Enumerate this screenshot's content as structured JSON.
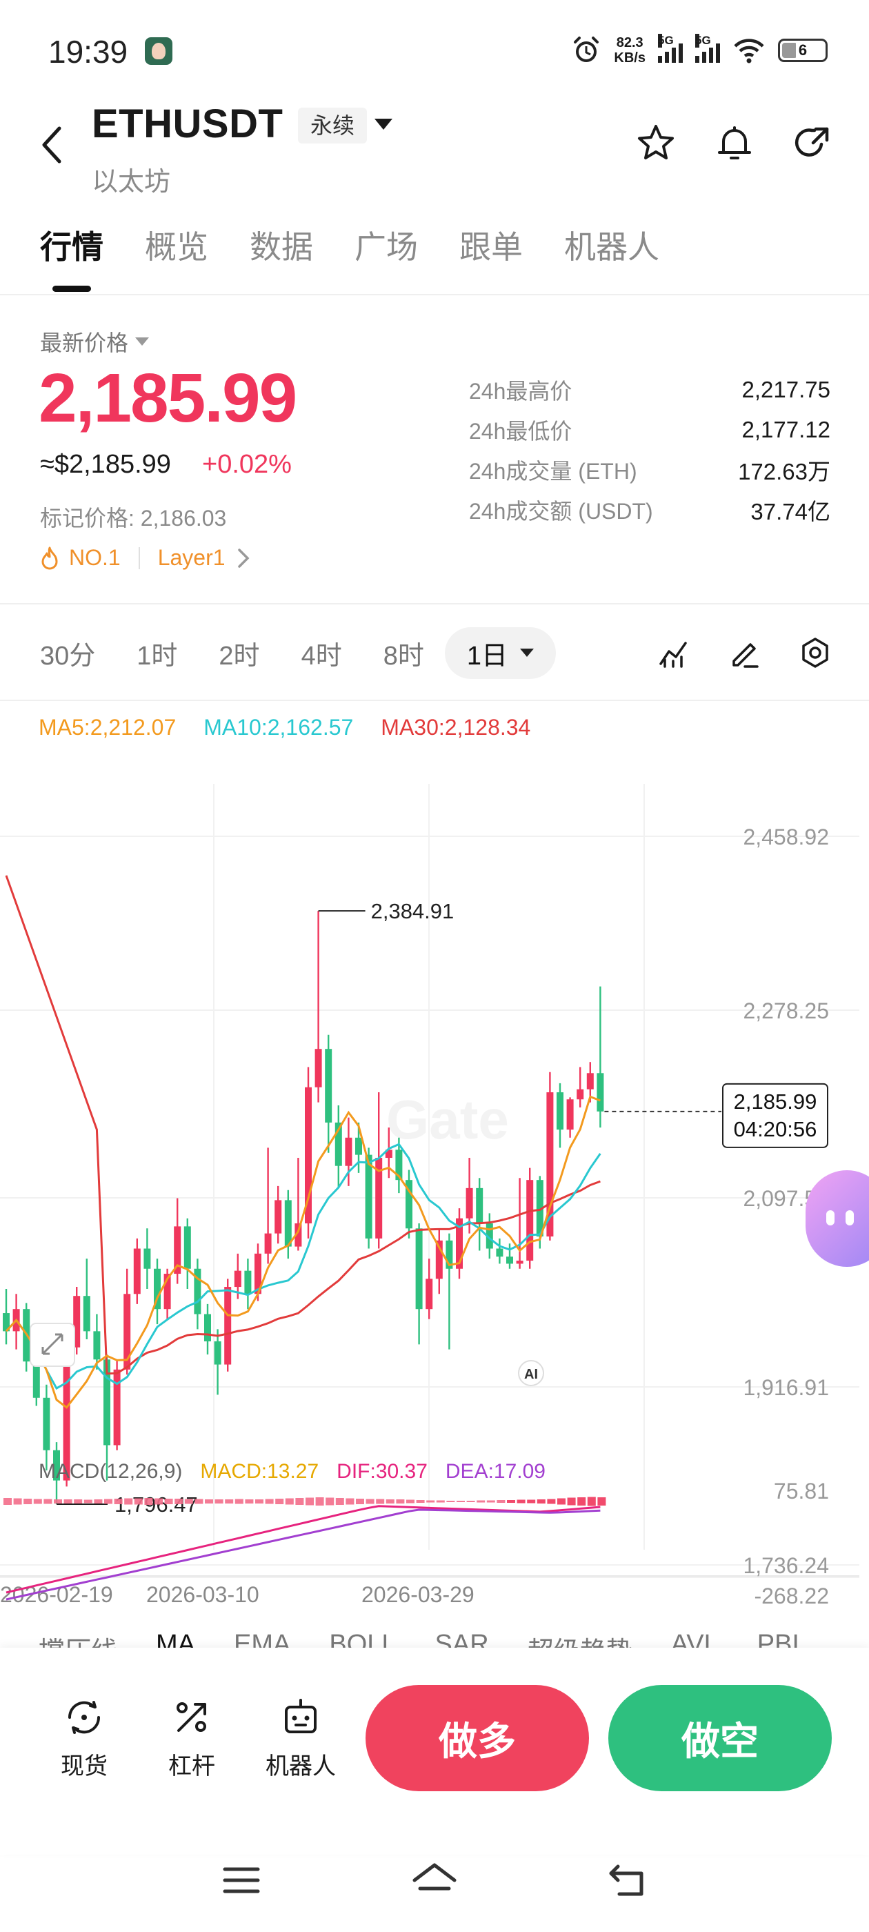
{
  "status_bar": {
    "time": "19:39",
    "net_speed_value": "82.3",
    "net_speed_unit": "KB/s",
    "sim1_label": "5G",
    "sim2_label": "5G",
    "battery": "6",
    "icons": [
      "alarm-icon",
      "signal-icon",
      "wifi-icon",
      "battery-icon"
    ]
  },
  "header": {
    "pair": "ETHUSDT",
    "contract_type": "永续",
    "name": "以太坊",
    "icons": [
      "back-icon",
      "star-icon",
      "bell-icon",
      "share-icon"
    ]
  },
  "tabs": [
    "行情",
    "概览",
    "数据",
    "广场",
    "跟单",
    "机器人"
  ],
  "price": {
    "latest_label": "最新价格",
    "value": "2,185.99",
    "usd_approx": "≈$2,185.99",
    "change_pct": "+0.02%",
    "mark_price": "标记价格: 2,186.03",
    "tag_rank": "NO.1",
    "tag_category": "Layer1"
  },
  "stats": [
    {
      "label": "24h最高价",
      "value": "2,217.75"
    },
    {
      "label": "24h最低价",
      "value": "2,177.12"
    },
    {
      "label": "24h成交量 (ETH)",
      "value": "172.63万"
    },
    {
      "label": "24h成交额 (USDT)",
      "value": "37.74亿"
    }
  ],
  "timeframes": [
    "30分",
    "1时",
    "2时",
    "4时",
    "8时"
  ],
  "timeframe_active": "1日",
  "chart_tools": [
    "indicator-icon",
    "draw-icon",
    "settings-icon"
  ],
  "ma_legend": {
    "ma5": "MA5:2,212.07",
    "ma10": "MA10:2,162.57",
    "ma30": "MA30:2,128.34"
  },
  "macd_legend": {
    "label": "MACD(12,26,9)",
    "macd": "MACD:13.27",
    "dif": "DIF:30.37",
    "dea": "DEA:17.09"
  },
  "indicator_tabs": [
    "撑压线",
    "MA",
    "EMA",
    "BOLL",
    "SAR",
    "超级趋势",
    "AVL",
    "PBI"
  ],
  "indicator_active": "MA",
  "ai_badge": "AI",
  "chart_data": {
    "type": "candlestick",
    "price_axis_ticks": [
      "2,458.92",
      "2,278.25",
      "2,097.58",
      "1,916.91",
      "1,736.24"
    ],
    "ylim": [
      1736.24,
      2458.92
    ],
    "x_tick_labels": [
      "2026-02-19",
      "2026-03-10",
      "2026-03-29"
    ],
    "high_marker": "2,384.91",
    "low_marker": "1,796.47",
    "current_price_box": "2,185.99",
    "countdown": "04:20:56",
    "colors": {
      "up": "#f0365c",
      "down": "#2ec07f",
      "ma5": "#f39a1e",
      "ma10": "#29c8d0",
      "ma30": "#e23b3b"
    },
    "candles": [
      [
        1986,
        1968,
        2010,
        1955
      ],
      [
        1968,
        1990,
        2005,
        1950
      ],
      [
        1990,
        1938,
        1996,
        1928
      ],
      [
        1938,
        1902,
        1945,
        1894
      ],
      [
        1902,
        1850,
        1915,
        1830
      ],
      [
        1850,
        1820,
        1858,
        1796.47
      ],
      [
        1820,
        1952,
        1960,
        1814
      ],
      [
        1952,
        2003,
        2012,
        1945
      ],
      [
        2003,
        1968,
        2040,
        1960
      ],
      [
        1968,
        1940,
        1985,
        1930
      ],
      [
        1940,
        1855,
        1945,
        1820
      ],
      [
        1855,
        1930,
        1940,
        1850
      ],
      [
        1930,
        2005,
        2030,
        1925
      ],
      [
        2005,
        2050,
        2060,
        1995
      ],
      [
        2050,
        2030,
        2070,
        2010
      ],
      [
        2030,
        1990,
        2040,
        1975
      ],
      [
        1990,
        2025,
        2030,
        1980
      ],
      [
        2025,
        2072,
        2100,
        2015
      ],
      [
        2072,
        2030,
        2080,
        2010
      ],
      [
        2030,
        1985,
        2040,
        1970
      ],
      [
        1985,
        1958,
        1995,
        1945
      ],
      [
        1958,
        1935,
        1970,
        1905
      ],
      [
        1935,
        2012,
        2020,
        1928
      ],
      [
        2012,
        2028,
        2045,
        2000
      ],
      [
        2028,
        2005,
        2040,
        1990
      ],
      [
        2005,
        2045,
        2055,
        1998
      ],
      [
        2045,
        2065,
        2150,
        2035
      ],
      [
        2065,
        2098,
        2112,
        2055
      ],
      [
        2098,
        2052,
        2108,
        2040
      ],
      [
        2052,
        2075,
        2140,
        2048
      ],
      [
        2075,
        2210,
        2230,
        2060
      ],
      [
        2210,
        2248,
        2384.91,
        2195
      ],
      [
        2248,
        2175,
        2262,
        2145
      ],
      [
        2175,
        2132,
        2192,
        2110
      ],
      [
        2132,
        2160,
        2180,
        2112
      ],
      [
        2160,
        2143,
        2175,
        2125
      ],
      [
        2143,
        2060,
        2150,
        2050
      ],
      [
        2060,
        2140,
        2205,
        2050
      ],
      [
        2140,
        2148,
        2170,
        2120
      ],
      [
        2148,
        2118,
        2160,
        2105
      ],
      [
        2118,
        2070,
        2128,
        2060
      ],
      [
        2070,
        1990,
        2075,
        1955
      ],
      [
        1990,
        2020,
        2040,
        1980
      ],
      [
        2020,
        2058,
        2070,
        2005
      ],
      [
        2058,
        2030,
        2065,
        1950
      ],
      [
        2030,
        2080,
        2090,
        2020
      ],
      [
        2080,
        2110,
        2140,
        2065
      ],
      [
        2110,
        2075,
        2120,
        2048
      ],
      [
        2075,
        2050,
        2085,
        2040
      ],
      [
        2050,
        2042,
        2060,
        2035
      ],
      [
        2042,
        2035,
        2055,
        2030
      ],
      [
        2035,
        2038,
        2120,
        2030
      ],
      [
        2038,
        2118,
        2130,
        2030
      ],
      [
        2118,
        2062,
        2122,
        2050
      ],
      [
        2062,
        2205,
        2225,
        2058
      ],
      [
        2205,
        2168,
        2214,
        2150
      ],
      [
        2168,
        2198,
        2200,
        2160
      ],
      [
        2198,
        2208,
        2230,
        2190
      ],
      [
        2208,
        2224,
        2235,
        2195
      ],
      [
        2224,
        2185.99,
        2310,
        2170
      ]
    ]
  }
}
